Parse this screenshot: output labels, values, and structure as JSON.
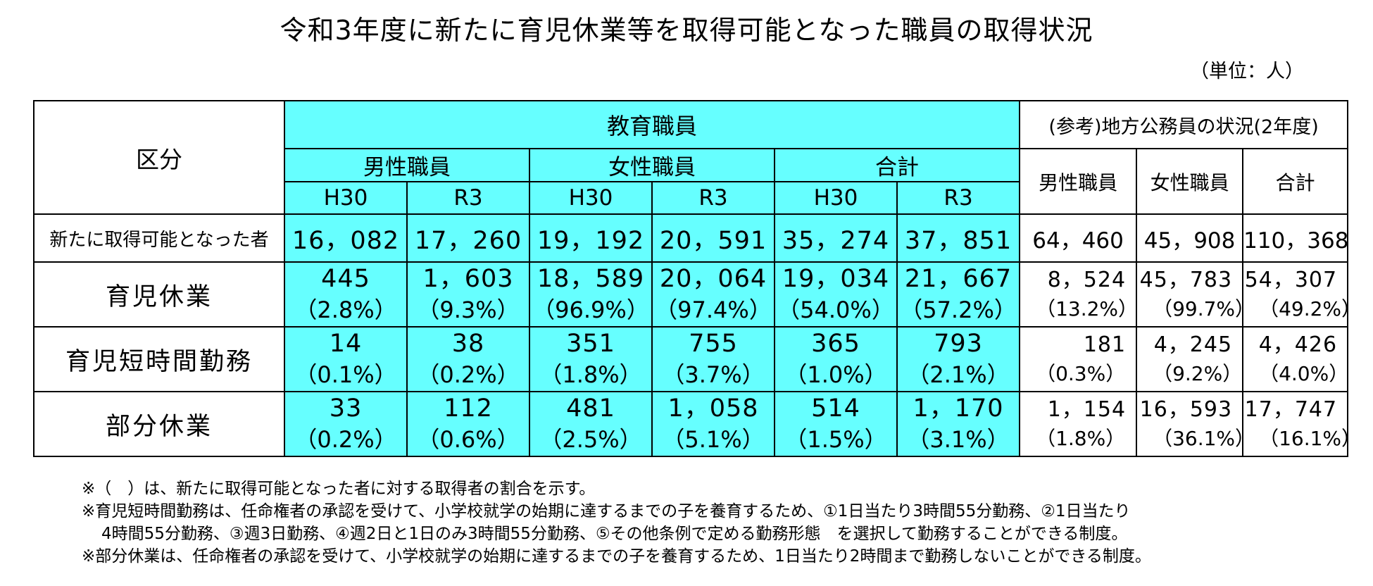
{
  "title": "令和3年度に新たに育児休業等を取得可能となった職員の取得状況",
  "unit": "（単位：人）",
  "header": {
    "category": "区分",
    "education_staff": "教育職員",
    "male": "男性職員",
    "female": "女性職員",
    "total": "合計",
    "h30": "H30",
    "r3": "R3",
    "reference": "(参考)地方公務員の状況(2年度)",
    "ref_male": "男性職員",
    "ref_female": "女性職員",
    "ref_total": "合計"
  },
  "rows": [
    {
      "label": "新たに取得可能となった者",
      "edu": [
        {
          "v": "16，082",
          "p": ""
        },
        {
          "v": "17，260",
          "p": ""
        },
        {
          "v": "19，192",
          "p": ""
        },
        {
          "v": "20，591",
          "p": ""
        },
        {
          "v": "35，274",
          "p": ""
        },
        {
          "v": "37，851",
          "p": ""
        }
      ],
      "ref": [
        {
          "v": "64，460",
          "p": ""
        },
        {
          "v": "45，908",
          "p": ""
        },
        {
          "v": "110，368",
          "p": ""
        }
      ]
    },
    {
      "label": "育児休業",
      "edu": [
        {
          "v": "445",
          "p": "（2.8%）"
        },
        {
          "v": "1，603",
          "p": "（9.3%）"
        },
        {
          "v": "18，589",
          "p": "（96.9%）"
        },
        {
          "v": "20，064",
          "p": "（97.4%）"
        },
        {
          "v": "19，034",
          "p": "（54.0%）"
        },
        {
          "v": "21，667",
          "p": "（57.2%）"
        }
      ],
      "ref": [
        {
          "v": "8，524",
          "p": "（13.2%）"
        },
        {
          "v": "45，783",
          "p": "（99.7%）"
        },
        {
          "v": "54，307",
          "p": "（49.2%）"
        }
      ]
    },
    {
      "label": "育児短時間勤務",
      "edu": [
        {
          "v": "14",
          "p": "（0.1%）"
        },
        {
          "v": "38",
          "p": "（0.2%）"
        },
        {
          "v": "351",
          "p": "（1.8%）"
        },
        {
          "v": "755",
          "p": "（3.7%）"
        },
        {
          "v": "365",
          "p": "（1.0%）"
        },
        {
          "v": "793",
          "p": "（2.1%）"
        }
      ],
      "ref": [
        {
          "v": "181",
          "p": "（0.3%）"
        },
        {
          "v": "4，245",
          "p": "（9.2%）"
        },
        {
          "v": "4，426",
          "p": "（4.0%）"
        }
      ]
    },
    {
      "label": "部分休業",
      "edu": [
        {
          "v": "33",
          "p": "（0.2%）"
        },
        {
          "v": "112",
          "p": "（0.6%）"
        },
        {
          "v": "481",
          "p": "（2.5%）"
        },
        {
          "v": "1，058",
          "p": "（5.1%）"
        },
        {
          "v": "514",
          "p": "（1.5%）"
        },
        {
          "v": "1，170",
          "p": "（3.1%）"
        }
      ],
      "ref": [
        {
          "v": "1，154",
          "p": "（1.8%）"
        },
        {
          "v": "16，593",
          "p": "（36.1%）"
        },
        {
          "v": "17，747",
          "p": "（16.1%）"
        }
      ]
    }
  ],
  "notes": {
    "n1": "※（　）は、新たに取得可能となった者に対する取得者の割合を示す。",
    "n2a": "※育児短時間勤務は、任命権者の承認を受けて、小学校就学の始期に達するまでの子を養育するため、①1日当たり3時間55分勤務、②1日当たり",
    "n2b": "4時間55分勤務、③週3日勤務、④週2日と1日のみ3時間55分勤務、⑤その他条例で定める勤務形態　を選択して勤務することができる制度。",
    "n3": "※部分休業は、任命権者の承認を受けて、小学校就学の始期に達するまでの子を養育するため、1日当たり2時間まで勤務しないことができる制度。"
  },
  "colors": {
    "cyan": "#66ffff",
    "border": "#000000"
  }
}
